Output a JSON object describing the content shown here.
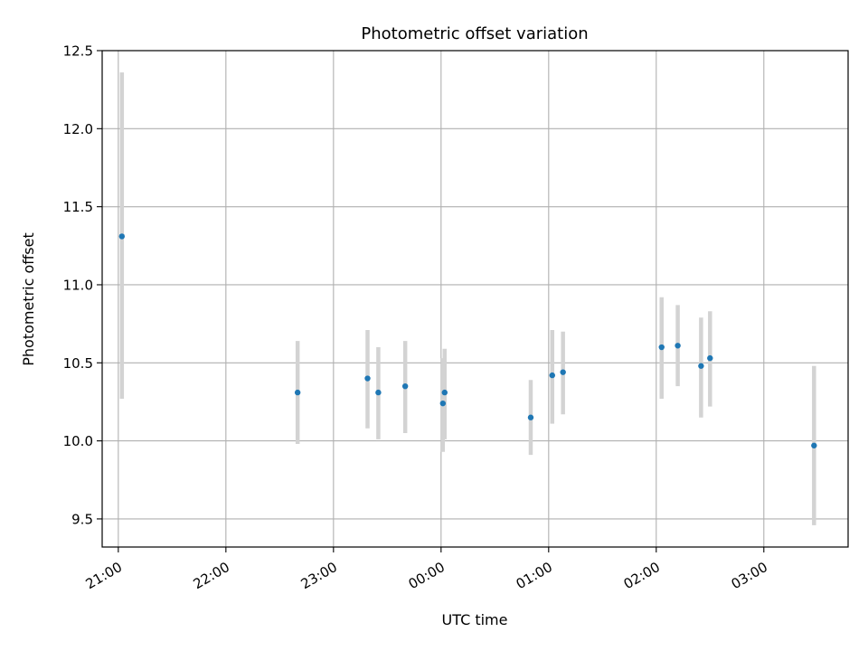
{
  "chart_data": {
    "type": "scatter",
    "title": "Photometric offset variation",
    "xlabel": "UTC time",
    "ylabel": "Photometric offset",
    "x_axis": {
      "kind": "time",
      "range": [
        "20:51",
        "03:47"
      ],
      "ticks": [
        "21:00",
        "22:00",
        "23:00",
        "00:00",
        "01:00",
        "02:00",
        "03:00"
      ]
    },
    "y_axis": {
      "range": [
        9.32,
        12.5
      ],
      "ticks": [
        "9.5",
        "10.0",
        "10.5",
        "11.0",
        "11.5",
        "12.0",
        "12.5"
      ]
    },
    "grid": true,
    "legend": "none",
    "colors": {
      "point": "#1f77b4",
      "errorbar": "#d3d3d3",
      "grid": "#b0b0b0"
    },
    "points": [
      {
        "x": "21:02",
        "y": 11.31,
        "err": [
          10.27,
          12.36
        ]
      },
      {
        "x": "22:40",
        "y": 10.31,
        "err": [
          9.98,
          10.64
        ]
      },
      {
        "x": "23:19",
        "y": 10.4,
        "err": [
          10.08,
          10.71
        ]
      },
      {
        "x": "23:25",
        "y": 10.31,
        "err": [
          10.01,
          10.6
        ]
      },
      {
        "x": "23:40",
        "y": 10.35,
        "err": [
          10.05,
          10.64
        ]
      },
      {
        "x": "00:01",
        "y": 10.24,
        "err": [
          9.93,
          10.53
        ]
      },
      {
        "x": "00:02",
        "y": 10.31,
        "err": [
          10.01,
          10.59
        ]
      },
      {
        "x": "00:50",
        "y": 10.15,
        "err": [
          9.91,
          10.39
        ]
      },
      {
        "x": "01:02",
        "y": 10.42,
        "err": [
          10.11,
          10.71
        ]
      },
      {
        "x": "01:08",
        "y": 10.44,
        "err": [
          10.17,
          10.7
        ]
      },
      {
        "x": "02:03",
        "y": 10.6,
        "err": [
          10.27,
          10.92
        ]
      },
      {
        "x": "02:12",
        "y": 10.61,
        "err": [
          10.35,
          10.87
        ]
      },
      {
        "x": "02:25",
        "y": 10.48,
        "err": [
          10.15,
          10.79
        ]
      },
      {
        "x": "02:30",
        "y": 10.53,
        "err": [
          10.22,
          10.83
        ]
      },
      {
        "x": "03:28",
        "y": 9.97,
        "err": [
          9.46,
          10.48
        ]
      }
    ]
  }
}
